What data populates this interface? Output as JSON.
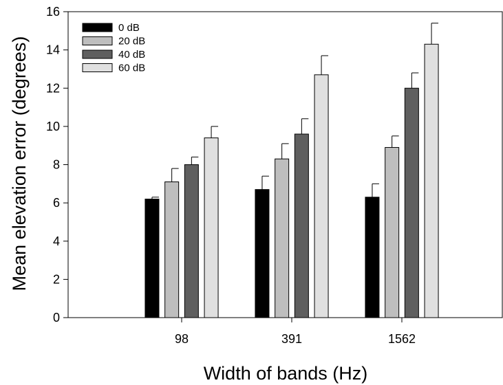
{
  "chart_data": {
    "type": "bar",
    "title": "",
    "xlabel": "Width of bands (Hz)",
    "ylabel": "Mean elevation error (degrees)",
    "ylim": [
      0,
      16
    ],
    "yticks": [
      0,
      2,
      4,
      6,
      8,
      10,
      12,
      14,
      16
    ],
    "categories": [
      "98",
      "391",
      "1562"
    ],
    "grid": false,
    "legend_position": "top-left",
    "series": [
      {
        "name": "0 dB",
        "color": "#000000",
        "values": [
          6.2,
          6.7,
          6.3
        ],
        "errors": [
          0.1,
          0.7,
          0.7
        ]
      },
      {
        "name": "20 dB",
        "color": "#bebebe",
        "values": [
          7.1,
          8.3,
          8.9
        ],
        "errors": [
          0.7,
          0.8,
          0.6
        ]
      },
      {
        "name": "40 dB",
        "color": "#5f5f5f",
        "values": [
          8.0,
          9.6,
          12.0
        ],
        "errors": [
          0.4,
          0.8,
          0.8
        ]
      },
      {
        "name": "60 dB",
        "color": "#e0e0e0",
        "values": [
          9.4,
          12.7,
          14.3
        ],
        "errors": [
          0.6,
          1.0,
          1.1
        ]
      }
    ]
  }
}
